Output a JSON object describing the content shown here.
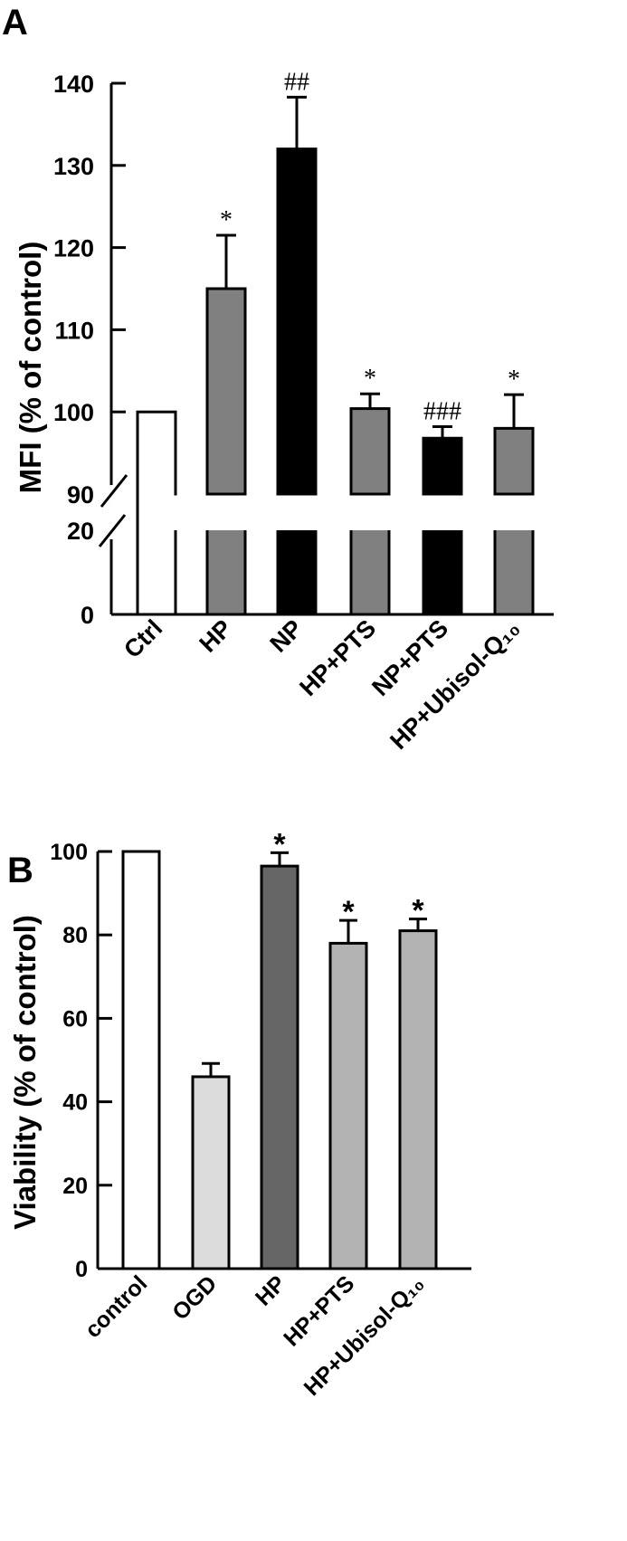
{
  "chart_data": [
    {
      "type": "bar",
      "panel_label": "A",
      "ylabel": "MFI (% of control)",
      "categories": [
        "Ctrl",
        "HP",
        "NP",
        "HP+PTS",
        "NP+PTS",
        "HP+Ubisol-Q₁₀"
      ],
      "values": [
        100,
        115,
        132,
        100.4,
        96.8,
        98
      ],
      "errors": [
        0,
        6.5,
        6.3,
        1.8,
        1.4,
        4.1
      ],
      "annotations": [
        "",
        "*",
        "##",
        "*",
        "###",
        "*"
      ],
      "bar_colors": [
        "#ffffff",
        "#808080",
        "#000000",
        "#808080",
        "#000000",
        "#808080"
      ],
      "broken_axis": {
        "lower": [
          0,
          20
        ],
        "upper": [
          90,
          140
        ]
      },
      "yticks": [
        "0",
        "20",
        "90",
        "100",
        "110",
        "120",
        "130",
        "140"
      ],
      "ytick_values": [
        0,
        20,
        90,
        100,
        110,
        120,
        130,
        140
      ]
    },
    {
      "type": "bar",
      "panel_label": "B",
      "ylabel": "Viability (% of control)",
      "categories": [
        "control",
        "OGD",
        "HP",
        "HP+PTS",
        "HP+Ubisol-Q₁₀"
      ],
      "values": [
        100,
        46,
        96.5,
        78,
        81
      ],
      "errors": [
        0,
        3.2,
        3.2,
        5.5,
        2.8
      ],
      "annotations": [
        "",
        "",
        "*",
        "*",
        "*"
      ],
      "bar_colors": [
        "#ffffff",
        "#dcdcdc",
        "#666666",
        "#b3b3b3",
        "#b3b3b3"
      ],
      "ylim": [
        0,
        100
      ],
      "yticks": [
        "0",
        "20",
        "40",
        "60",
        "80",
        "100"
      ],
      "ytick_values": [
        0,
        20,
        40,
        60,
        80,
        100
      ]
    }
  ]
}
